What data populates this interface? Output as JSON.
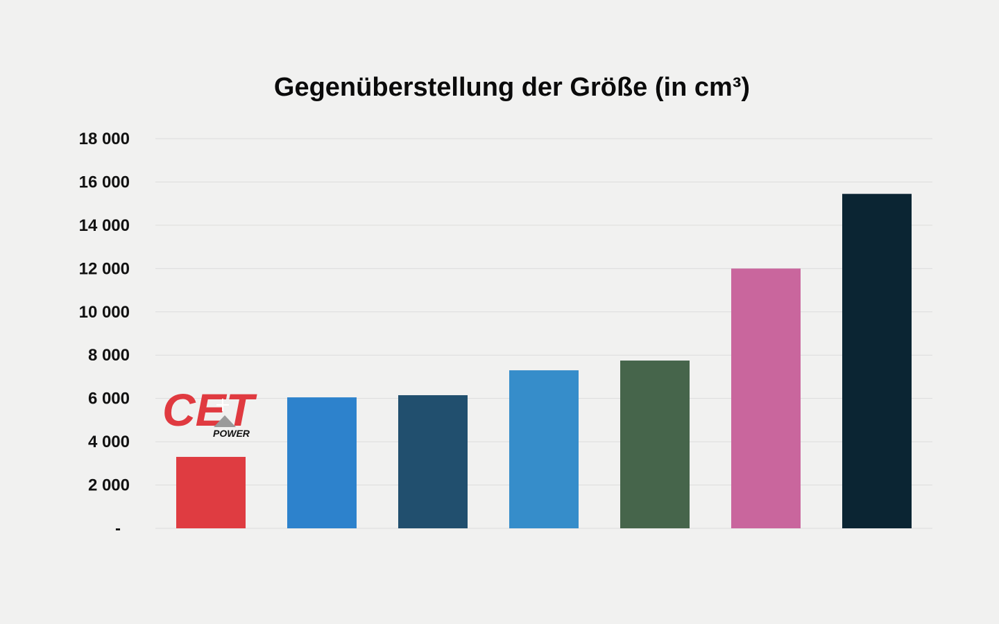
{
  "chart_data": {
    "type": "bar",
    "title": "Gegenüberstellung der Größe (in cm³)",
    "xlabel": "",
    "ylabel": "",
    "ylim": [
      0,
      18000
    ],
    "yticks": [
      {
        "value": 0,
        "label": "-"
      },
      {
        "value": 2000,
        "label": "2 000"
      },
      {
        "value": 4000,
        "label": "4 000"
      },
      {
        "value": 6000,
        "label": "6 000"
      },
      {
        "value": 8000,
        "label": "8 000"
      },
      {
        "value": 10000,
        "label": "10 000"
      },
      {
        "value": 12000,
        "label": "12 000"
      },
      {
        "value": 14000,
        "label": "14 000"
      },
      {
        "value": 16000,
        "label": "16 000"
      },
      {
        "value": 18000,
        "label": "18 000"
      }
    ],
    "grid": true,
    "legend": "none",
    "values": [
      3300,
      6050,
      6150,
      7300,
      7750,
      12000,
      15450
    ],
    "colors": [
      "#df3c41",
      "#2d82cc",
      "#214f6e",
      "#368dca",
      "#46654b",
      "#c9669d",
      "#0b2533"
    ],
    "category_logo": {
      "bar_index": 0,
      "text": "CET",
      "subtext": "POWER",
      "color": "#e03a40"
    }
  }
}
